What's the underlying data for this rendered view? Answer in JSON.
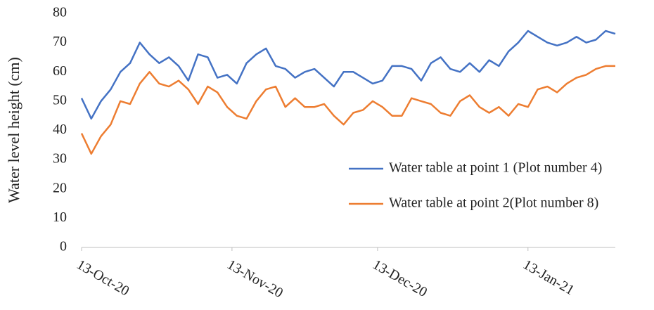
{
  "chart_data": {
    "type": "line",
    "y_label": "Water level height (cm)",
    "x": [
      "2020-10-13",
      "2020-10-15",
      "2020-10-17",
      "2020-10-19",
      "2020-10-21",
      "2020-10-23",
      "2020-10-25",
      "2020-10-27",
      "2020-10-29",
      "2020-10-31",
      "2020-11-02",
      "2020-11-04",
      "2020-11-06",
      "2020-11-08",
      "2020-11-10",
      "2020-11-12",
      "2020-11-14",
      "2020-11-16",
      "2020-11-18",
      "2020-11-20",
      "2020-11-22",
      "2020-11-24",
      "2020-11-26",
      "2020-11-28",
      "2020-11-30",
      "2020-12-02",
      "2020-12-04",
      "2020-12-06",
      "2020-12-08",
      "2020-12-10",
      "2020-12-12",
      "2020-12-14",
      "2020-12-16",
      "2020-12-18",
      "2020-12-20",
      "2020-12-22",
      "2020-12-24",
      "2020-12-26",
      "2020-12-28",
      "2020-12-30",
      "2021-01-01",
      "2021-01-03",
      "2021-01-05",
      "2021-01-07",
      "2021-01-09",
      "2021-01-11",
      "2021-01-13",
      "2021-01-15",
      "2021-01-17",
      "2021-01-19",
      "2021-01-21",
      "2021-01-23",
      "2021-01-25",
      "2021-01-27",
      "2021-01-29",
      "2021-01-31"
    ],
    "series": [
      {
        "name": "Water table at point 1 (Plot number 4)",
        "color": "#4472c4",
        "values": [
          51,
          44,
          50,
          54,
          60,
          63,
          70,
          66,
          63,
          65,
          62,
          57,
          66,
          65,
          58,
          59,
          56,
          63,
          66,
          68,
          62,
          61,
          58,
          60,
          61,
          58,
          55,
          60,
          60,
          58,
          56,
          57,
          62,
          62,
          61,
          57,
          63,
          65,
          61,
          60,
          63,
          60,
          64,
          62,
          67,
          70,
          74,
          72,
          70,
          69,
          70,
          72,
          70,
          71,
          74,
          73
        ]
      },
      {
        "name": "Water table at point 2(Plot number 8)",
        "color": "#ed7d31",
        "values": [
          39,
          32,
          38,
          42,
          50,
          49,
          56,
          60,
          56,
          55,
          57,
          54,
          49,
          55,
          53,
          48,
          45,
          44,
          50,
          54,
          55,
          48,
          51,
          48,
          48,
          49,
          45,
          42,
          46,
          47,
          50,
          48,
          45,
          45,
          51,
          50,
          49,
          46,
          45,
          50,
          52,
          48,
          46,
          48,
          45,
          49,
          48,
          54,
          55,
          53,
          56,
          58,
          59,
          61,
          62,
          62
        ]
      }
    ],
    "xlim": [
      "2020-10-13",
      "2021-01-31"
    ],
    "xticks": [
      {
        "value": "2020-10-13",
        "label": "13-Oct-20"
      },
      {
        "value": "2020-11-13",
        "label": "13-Nov-20"
      },
      {
        "value": "2020-12-13",
        "label": "13-Dec-20"
      },
      {
        "value": "2021-01-13",
        "label": "13-Jan-21"
      }
    ],
    "ylim": [
      0,
      80
    ],
    "yticks": [
      0,
      10,
      20,
      30,
      40,
      50,
      60,
      70,
      80
    ]
  }
}
